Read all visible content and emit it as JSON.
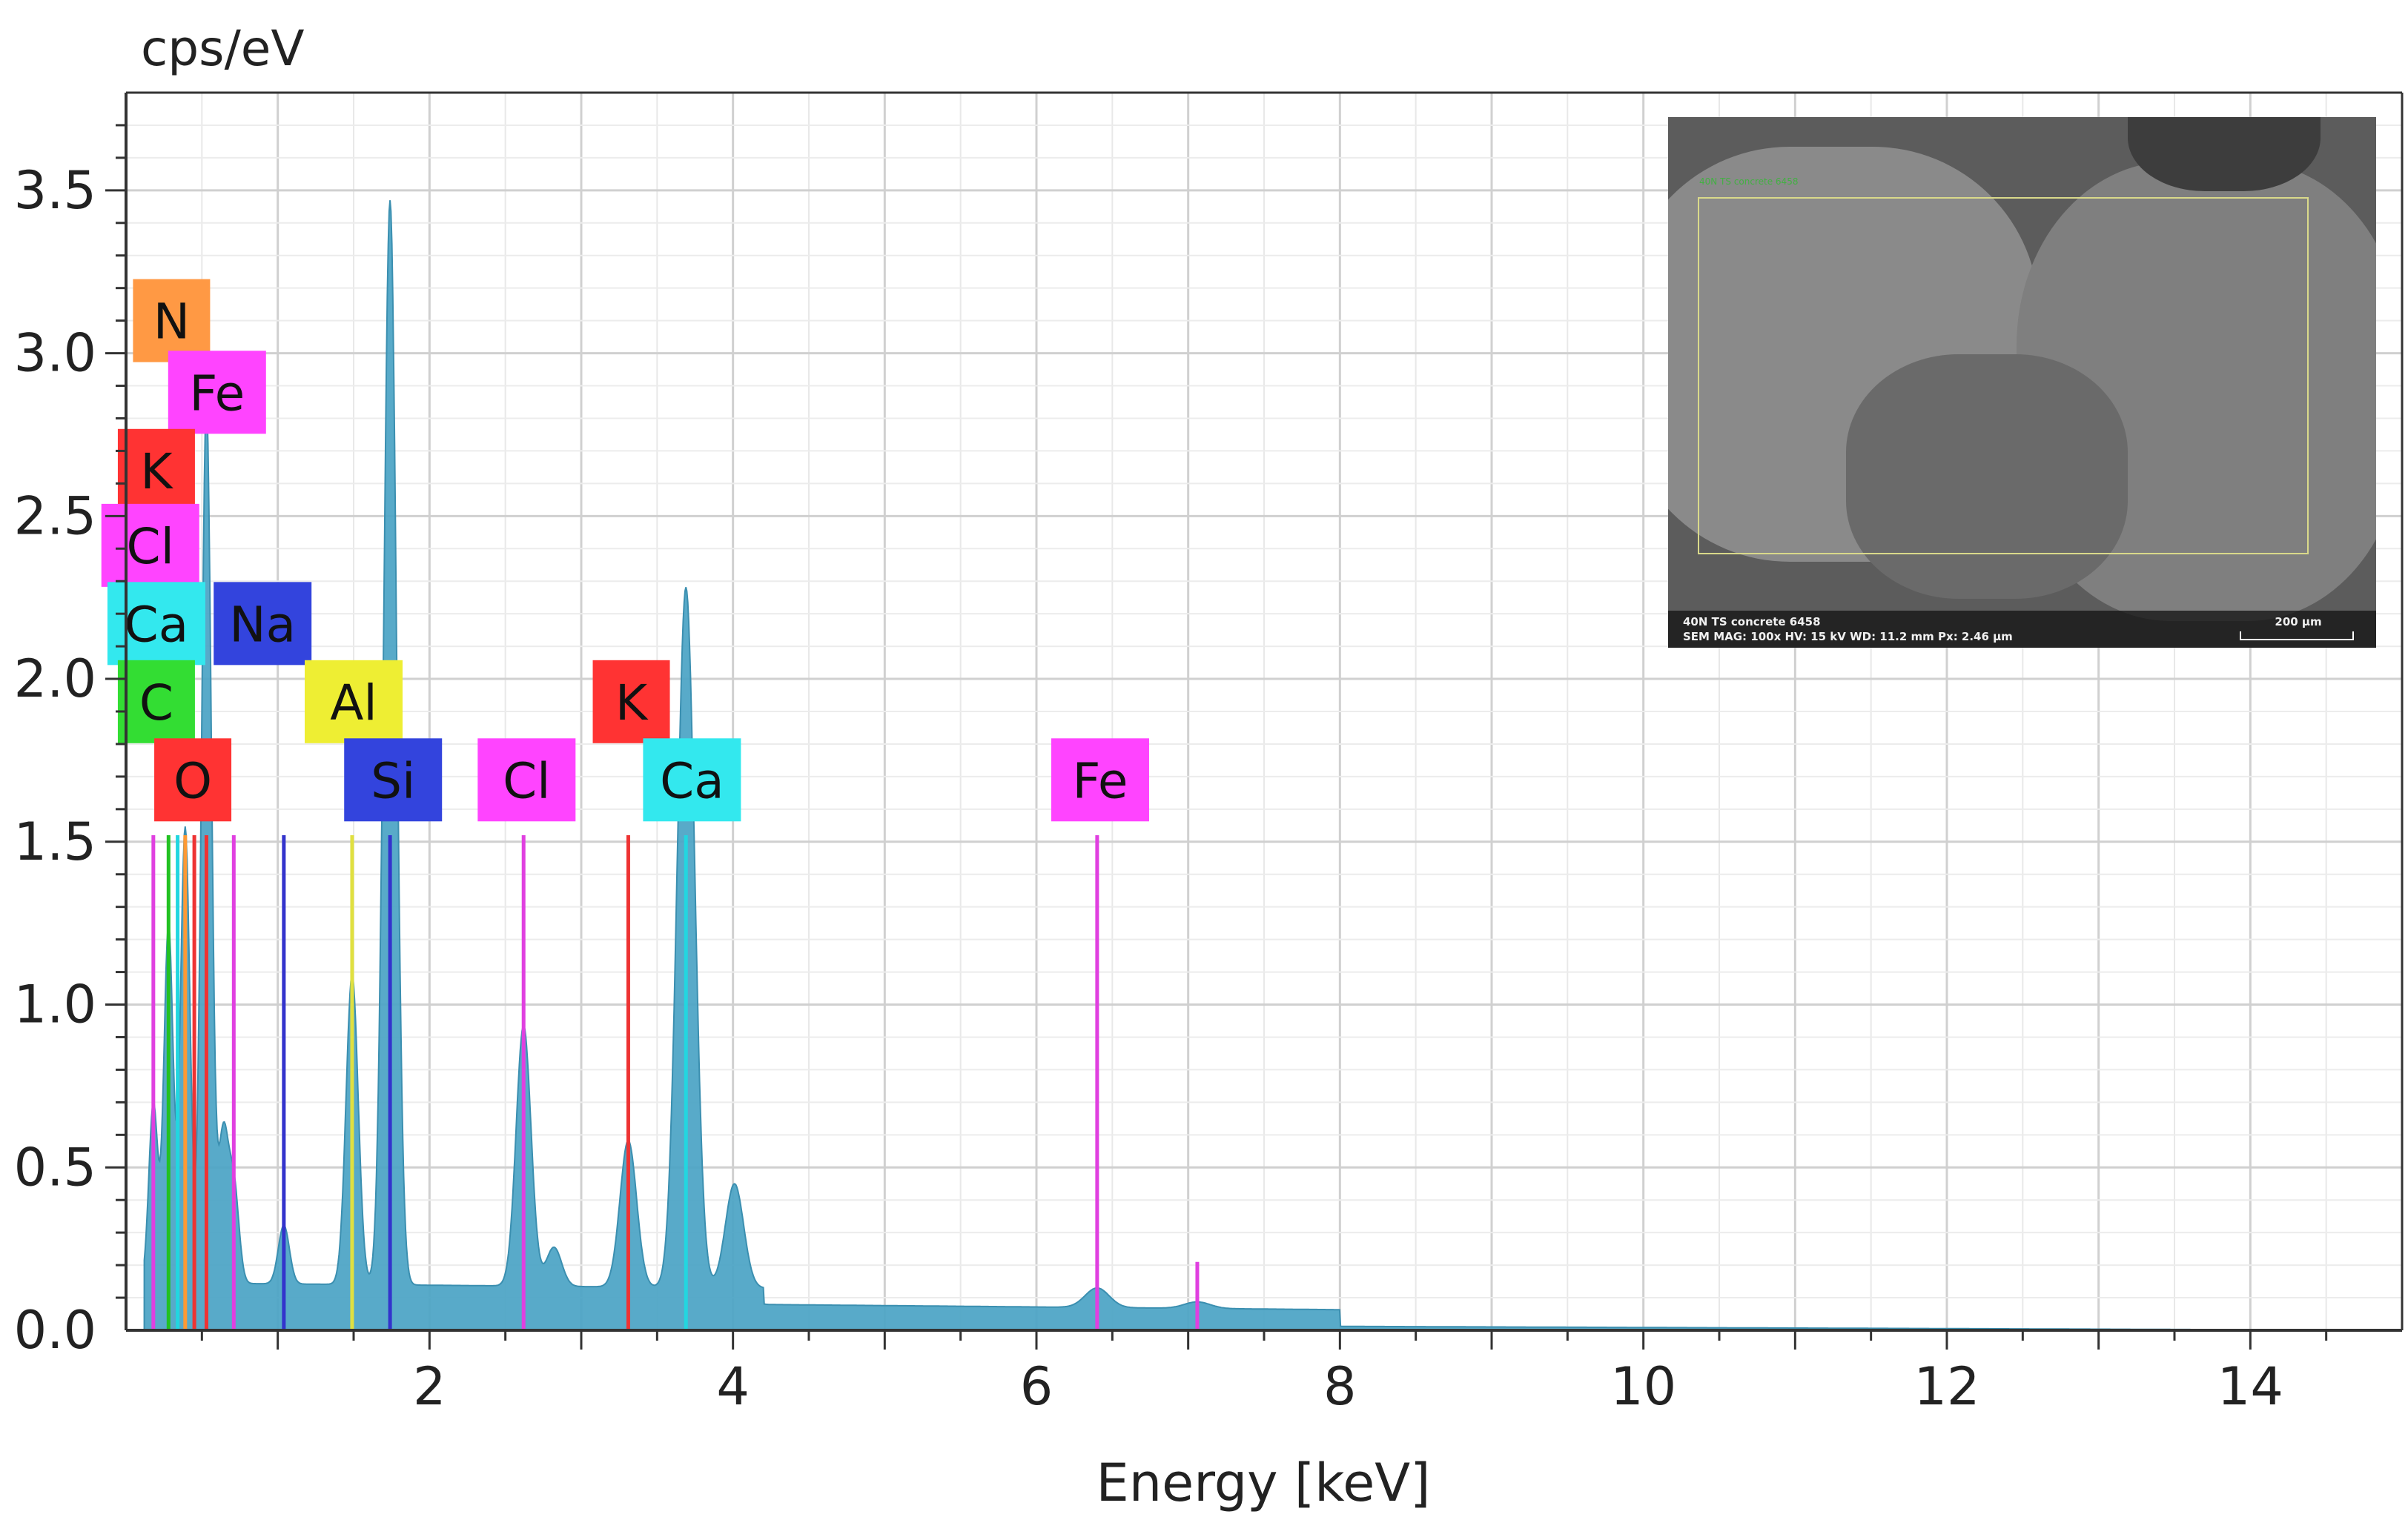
{
  "chart_data": {
    "type": "line",
    "title": "",
    "ylabel": "cps/eV",
    "xlabel": "Energy [keV]",
    "xlim": [
      0,
      15
    ],
    "ylim": [
      0,
      3.8
    ],
    "x_ticks": [
      2,
      4,
      6,
      8,
      10,
      12,
      14
    ],
    "y_ticks": [
      0.0,
      0.5,
      1.0,
      1.5,
      2.0,
      2.5,
      3.0,
      3.5
    ],
    "y_tick_labels": [
      "0.0",
      "0.5",
      "1.0",
      "1.5",
      "2.0",
      "2.5",
      "3.0",
      "3.5"
    ],
    "grid": true,
    "series": [
      {
        "name": "spectrum",
        "color": "#4aa3c4",
        "background": 0.07,
        "peaks": [
          {
            "x": 0.18,
            "y": 0.55
          },
          {
            "x": 0.28,
            "y": 1.1
          },
          {
            "x": 0.39,
            "y": 1.4
          },
          {
            "x": 0.53,
            "y": 2.7
          },
          {
            "x": 0.64,
            "y": 0.45
          },
          {
            "x": 0.71,
            "y": 0.3
          },
          {
            "x": 1.04,
            "y": 0.18
          },
          {
            "x": 1.49,
            "y": 0.95
          },
          {
            "x": 1.74,
            "y": 3.33
          },
          {
            "x": 2.62,
            "y": 0.8
          },
          {
            "x": 2.82,
            "y": 0.12
          },
          {
            "x": 3.31,
            "y": 0.45
          },
          {
            "x": 3.69,
            "y": 2.15
          },
          {
            "x": 4.01,
            "y": 0.32
          },
          {
            "x": 6.4,
            "y": 0.06
          },
          {
            "x": 7.06,
            "y": 0.02
          }
        ]
      }
    ],
    "element_markers": [
      {
        "x": 0.28,
        "y": 1.52,
        "color": "#22c122",
        "name": "C"
      },
      {
        "x": 0.34,
        "y": 1.52,
        "color": "#22d6e0",
        "name": "Ca"
      },
      {
        "x": 0.39,
        "y": 1.52,
        "color": "#ff9933",
        "name": "N"
      },
      {
        "x": 0.45,
        "y": 1.52,
        "color": "#ee3333",
        "name": "K"
      },
      {
        "x": 0.53,
        "y": 1.52,
        "color": "#ee3333",
        "name": "O"
      },
      {
        "x": 0.18,
        "y": 1.52,
        "color": "#e040e0",
        "name": "Cl"
      },
      {
        "x": 0.71,
        "y": 1.52,
        "color": "#e040e0",
        "name": "Fe"
      },
      {
        "x": 1.04,
        "y": 1.52,
        "color": "#3333cc",
        "name": "Na"
      },
      {
        "x": 1.49,
        "y": 1.52,
        "color": "#e0e040",
        "name": "Al"
      },
      {
        "x": 1.74,
        "y": 1.52,
        "color": "#3333cc",
        "name": "Si"
      },
      {
        "x": 2.62,
        "y": 1.52,
        "color": "#e040e0",
        "name": "Cl"
      },
      {
        "x": 3.31,
        "y": 1.52,
        "color": "#ee3333",
        "name": "K"
      },
      {
        "x": 3.69,
        "y": 1.52,
        "color": "#22d6e0",
        "name": "Ca"
      },
      {
        "x": 6.4,
        "y": 1.52,
        "color": "#e040e0",
        "name": "Fe"
      },
      {
        "x": 7.06,
        "y": 0.21,
        "color": "#e040e0",
        "name": "Fe Kb"
      }
    ],
    "element_labels": [
      {
        "text": "N",
        "x": 0.3,
        "y": 3.1,
        "color": "#ff9944"
      },
      {
        "text": "Fe",
        "x": 0.6,
        "y": 2.88,
        "color": "#ff44ff"
      },
      {
        "text": "K",
        "x": 0.2,
        "y": 2.64,
        "color": "#ff3333"
      },
      {
        "text": "Cl",
        "x": 0.16,
        "y": 2.41,
        "color": "#ff44ff"
      },
      {
        "text": "Ca",
        "x": 0.2,
        "y": 2.17,
        "color": "#33e8ee"
      },
      {
        "text": "Na",
        "x": 0.9,
        "y": 2.17,
        "color": "#3344dd"
      },
      {
        "text": "C",
        "x": 0.2,
        "y": 1.93,
        "color": "#33dd33"
      },
      {
        "text": "Al",
        "x": 1.5,
        "y": 1.93,
        "color": "#eeee33"
      },
      {
        "text": "K",
        "x": 3.33,
        "y": 1.93,
        "color": "#ff3333"
      },
      {
        "text": "O",
        "x": 0.44,
        "y": 1.69,
        "color": "#ff3333"
      },
      {
        "text": "Si",
        "x": 1.76,
        "y": 1.69,
        "color": "#3344dd"
      },
      {
        "text": "Cl",
        "x": 2.64,
        "y": 1.69,
        "color": "#ff44ff"
      },
      {
        "text": "Ca",
        "x": 3.73,
        "y": 1.69,
        "color": "#33e8ee"
      },
      {
        "text": "Fe",
        "x": 6.42,
        "y": 1.69,
        "color": "#ff44ff"
      }
    ]
  },
  "inset": {
    "roi_label": "40N TS concrete 6458",
    "info_line1": "40N TS concrete 6458",
    "info_line2": "SEM   MAG: 100x   HV: 15 kV   WD: 11.2 mm   Px: 2.46 µm",
    "scale_label": "200 µm"
  }
}
